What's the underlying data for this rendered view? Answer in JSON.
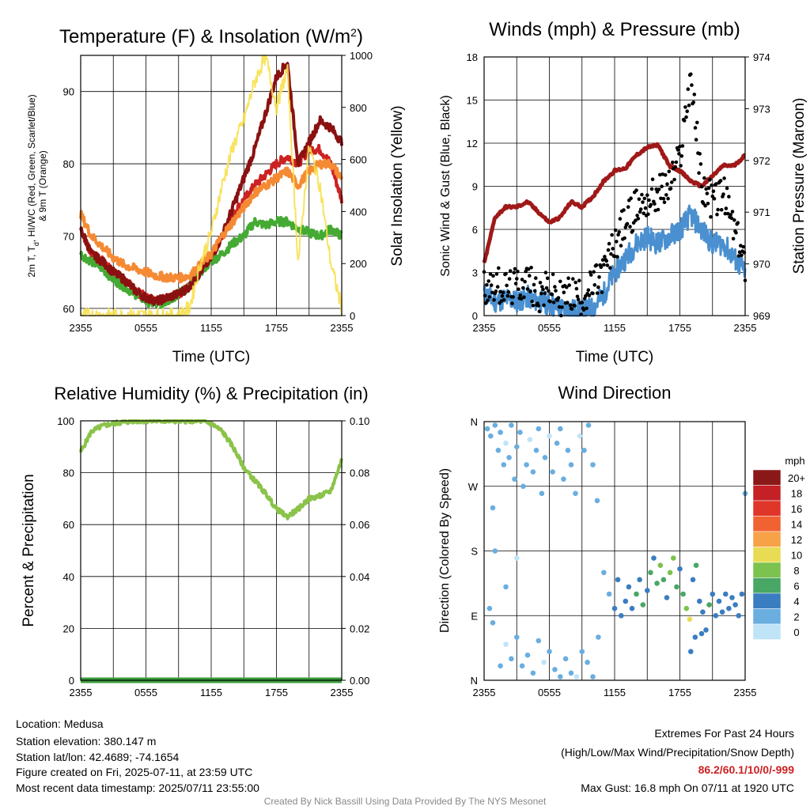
{
  "colors": {
    "temp": "#cc2222",
    "dewpoint": "#44aa33",
    "heat_index": "#8b1111",
    "temp9m": "#f58a34",
    "solar": "#f7e04f",
    "wind": "#4a90d0",
    "gust": "#000000",
    "pressure": "#a01818",
    "rh": "#8bc34a",
    "precip": "#3a9a3a",
    "extremes_values": "#cc2222"
  },
  "time_ticks": [
    "2355",
    "0555",
    "1155",
    "1755",
    "2355"
  ],
  "chart_data": [
    {
      "id": "temperature",
      "type": "line",
      "title": "Temperature (F) & Insolation (W/m",
      "title_sup": "2",
      "title_end": ")",
      "xlabel": "Time (UTC)",
      "ylabel_lines": [
        "2m T, T",
        "d",
        ", HI/WC (Red, Green, Scarlet/Blue)",
        "& 9m T (Orange)"
      ],
      "ylabel2": "Solar Insolation (Yellow)",
      "ylim": [
        59,
        95
      ],
      "yticks": [
        60,
        70,
        80,
        90
      ],
      "ylim2": [
        0,
        1000
      ],
      "yticks2": [
        0,
        200,
        400,
        600,
        800,
        1000
      ],
      "xlim": [
        0,
        24
      ],
      "series": [
        {
          "name": "2m T",
          "color": "#cc2222",
          "x": [
            0,
            1,
            2,
            3,
            4,
            5,
            6,
            7,
            8,
            9,
            10,
            11,
            12,
            13,
            14,
            15,
            16,
            17,
            18,
            19,
            20,
            21,
            22,
            23,
            24
          ],
          "y": [
            71,
            67.5,
            66.5,
            65,
            64,
            62.5,
            61.5,
            61,
            61.5,
            62,
            63,
            65,
            67,
            70,
            73,
            75,
            77,
            78.5,
            80,
            81,
            80,
            82,
            82,
            80,
            75
          ]
        },
        {
          "name": "Td",
          "color": "#44aa33",
          "x": [
            0,
            1,
            2,
            3,
            4,
            5,
            6,
            7,
            8,
            9,
            10,
            11,
            12,
            13,
            14,
            15,
            16,
            17,
            18,
            19,
            20,
            21,
            22,
            23,
            24
          ],
          "y": [
            67.5,
            66.5,
            65.5,
            64,
            63,
            62,
            61,
            60.5,
            61,
            62,
            63,
            65,
            66.5,
            67.5,
            69,
            70,
            72,
            71.5,
            72,
            72,
            71,
            70.5,
            70,
            71,
            70
          ]
        },
        {
          "name": "HI/WC",
          "color": "#8b1111",
          "x": [
            0,
            1,
            2,
            3,
            4,
            5,
            6,
            7,
            8,
            9,
            10,
            11,
            12,
            13,
            14,
            15,
            16,
            17,
            18,
            19,
            20,
            21,
            22,
            23,
            24
          ],
          "y": [
            71,
            67.5,
            66.5,
            65,
            64,
            62.5,
            61.5,
            61,
            61.5,
            62,
            63,
            65,
            67,
            70,
            74,
            78,
            82,
            87,
            92,
            94,
            80,
            83,
            86,
            85,
            83
          ]
        },
        {
          "name": "9m T",
          "color": "#f58a34",
          "x": [
            0,
            1,
            2,
            3,
            4,
            5,
            6,
            7,
            8,
            9,
            10,
            11,
            12,
            13,
            14,
            15,
            16,
            17,
            18,
            19,
            20,
            21,
            22,
            23,
            24
          ],
          "y": [
            73,
            70,
            68.5,
            67,
            66,
            65.5,
            65,
            64.5,
            64.3,
            64.2,
            64.5,
            66,
            67.5,
            70,
            72,
            74,
            76,
            77,
            78,
            79,
            77,
            79,
            80,
            80,
            78
          ]
        },
        {
          "name": "Solar",
          "color": "#f7e04f",
          "axis": "right",
          "x": [
            0,
            1,
            2,
            3,
            4,
            5,
            6,
            7,
            8,
            9,
            10,
            11,
            12,
            13,
            14,
            15,
            16,
            17,
            18,
            19,
            20,
            21,
            22,
            23,
            24
          ],
          "y": [
            0,
            0,
            0,
            0,
            0,
            0,
            0,
            0,
            0,
            0,
            30,
            200,
            320,
            500,
            650,
            750,
            900,
            1000,
            800,
            950,
            200,
            650,
            500,
            200,
            30
          ]
        }
      ]
    },
    {
      "id": "winds",
      "type": "line",
      "title": "Winds (mph) & Pressure (mb)",
      "xlabel": "Time (UTC)",
      "ylabel": "Sonic Wind & Gust (Blue, Black)",
      "ylabel2": "Station Pressure (Maroon)",
      "ylim": [
        0,
        18
      ],
      "yticks": [
        0,
        3,
        6,
        9,
        12,
        15,
        18
      ],
      "ylim2": [
        969,
        974
      ],
      "yticks2": [
        969,
        970,
        971,
        972,
        973,
        974
      ],
      "xlim": [
        0,
        24
      ],
      "series": [
        {
          "name": "Sonic Wind",
          "color": "#4a90d0",
          "x": [
            0,
            1,
            2,
            3,
            4,
            5,
            6,
            7,
            8,
            9,
            10,
            11,
            12,
            13,
            14,
            15,
            16,
            17,
            18,
            19,
            20,
            21,
            22,
            23,
            24
          ],
          "y": [
            1.5,
            1,
            1.2,
            1,
            1.3,
            1,
            0.8,
            0.5,
            0.4,
            0.3,
            0.5,
            1.5,
            3,
            4,
            5,
            5.5,
            5,
            5.5,
            6,
            7,
            6,
            5,
            5,
            4,
            3
          ]
        },
        {
          "name": "Gust",
          "color": "#000000",
          "x": [
            0,
            1,
            2,
            3,
            4,
            5,
            6,
            7,
            8,
            9,
            10,
            11,
            12,
            13,
            14,
            15,
            16,
            17,
            18,
            19,
            20,
            21,
            22,
            23,
            24
          ],
          "y": [
            2,
            2.3,
            1.8,
            2,
            2.5,
            1.5,
            1.8,
            1.2,
            1.5,
            1.3,
            2,
            3,
            5,
            6.5,
            7.5,
            8,
            8.5,
            9,
            11,
            16.8,
            9,
            8,
            8.5,
            6,
            3.5
          ]
        },
        {
          "name": "Pressure",
          "color": "#a01818",
          "axis": "right",
          "x": [
            0,
            1,
            2,
            3,
            4,
            5,
            6,
            7,
            8,
            9,
            10,
            11,
            12,
            13,
            14,
            15,
            16,
            17,
            18,
            19,
            20,
            21,
            22,
            23,
            24
          ],
          "y": [
            970,
            970.9,
            971.1,
            971.1,
            971.2,
            971.0,
            970.8,
            970.9,
            971.2,
            971.1,
            971.3,
            971.6,
            971.8,
            971.85,
            972.1,
            972.25,
            972.3,
            971.9,
            971.8,
            971.6,
            971.5,
            971.7,
            971.9,
            971.9,
            972.1
          ]
        }
      ]
    },
    {
      "id": "humidity",
      "type": "line",
      "title": "Relative Humidity (%) & Precipitation (in)",
      "ylabel": "Percent & Precipitation",
      "ylim": [
        0,
        100
      ],
      "yticks": [
        0,
        20,
        40,
        60,
        80,
        100
      ],
      "ylim2": [
        0,
        0.1
      ],
      "yticks2": [
        "0.00",
        "0.02",
        "0.04",
        "0.06",
        "0.08",
        "0.10"
      ],
      "xlim": [
        0,
        24
      ],
      "series": [
        {
          "name": "RH",
          "color": "#8bc34a",
          "x": [
            0,
            1,
            2,
            3,
            4,
            5,
            6,
            7,
            8,
            9,
            10,
            11,
            12,
            13,
            14,
            15,
            16,
            17,
            18,
            19,
            20,
            21,
            22,
            23,
            24
          ],
          "y": [
            88,
            96,
            98,
            99,
            99.5,
            100,
            100,
            100,
            100,
            100,
            100,
            100,
            99,
            96,
            90,
            82,
            77,
            72,
            66,
            63,
            66,
            70,
            71,
            73,
            85
          ]
        },
        {
          "name": "Precipitation",
          "color": "#3a9a3a",
          "axis": "right",
          "x": [
            0,
            24
          ],
          "y": [
            0,
            0
          ]
        }
      ]
    },
    {
      "id": "wind_direction",
      "type": "scatter",
      "title": "Wind Direction",
      "ylabel": "Direction (Colored By Speed)",
      "yticks": [
        0,
        90,
        180,
        270,
        360
      ],
      "ytick_labels": [
        "N",
        "E",
        "S",
        "W",
        "N"
      ],
      "ylim": [
        0,
        360
      ],
      "xlim": [
        0,
        24
      ],
      "colorbar_title": "mph",
      "colorbar_labels": [
        "20+",
        "18",
        "16",
        "14",
        "12",
        "10",
        "8",
        "6",
        "4",
        "2",
        "0"
      ],
      "colorbar_colors": [
        "#8b1818",
        "#c42026",
        "#e0362a",
        "#f06232",
        "#f7a247",
        "#e9dc55",
        "#7cc24e",
        "#48a764",
        "#3a7dc0",
        "#6aaee0",
        "#bfe4f7"
      ],
      "points": [
        [
          0.3,
          350,
          1
        ],
        [
          0.6,
          340,
          2
        ],
        [
          1.0,
          355,
          1
        ],
        [
          1.3,
          320,
          1
        ],
        [
          1.5,
          345,
          2
        ],
        [
          1.8,
          300,
          1
        ],
        [
          2.0,
          330,
          0
        ],
        [
          2.3,
          310,
          2
        ],
        [
          2.5,
          355,
          1
        ],
        [
          2.8,
          280,
          2
        ],
        [
          3.0,
          325,
          1
        ],
        [
          3.3,
          345,
          1
        ],
        [
          3.6,
          270,
          2
        ],
        [
          3.9,
          300,
          1
        ],
        [
          4.2,
          335,
          0
        ],
        [
          4.5,
          290,
          1
        ],
        [
          4.8,
          320,
          2
        ],
        [
          5.0,
          350,
          1
        ],
        [
          5.3,
          260,
          1
        ],
        [
          5.6,
          310,
          1
        ],
        [
          6.0,
          340,
          0
        ],
        [
          6.3,
          290,
          1
        ],
        [
          6.7,
          330,
          1
        ],
        [
          7.0,
          350,
          2
        ],
        [
          7.3,
          280,
          1
        ],
        [
          7.7,
          320,
          1
        ],
        [
          8.0,
          300,
          1
        ],
        [
          8.4,
          260,
          1
        ],
        [
          8.8,
          340,
          0
        ],
        [
          9.2,
          320,
          1
        ],
        [
          9.6,
          355,
          1
        ],
        [
          10.0,
          300,
          1
        ],
        [
          10.4,
          250,
          1
        ],
        [
          0.5,
          100,
          1
        ],
        [
          0.8,
          80,
          1
        ],
        [
          1.5,
          20,
          1
        ],
        [
          2.0,
          50,
          0
        ],
        [
          2.5,
          30,
          1
        ],
        [
          3.0,
          60,
          1
        ],
        [
          3.5,
          20,
          1
        ],
        [
          4.0,
          35,
          2
        ],
        [
          4.5,
          10,
          1
        ],
        [
          5.0,
          55,
          1
        ],
        [
          5.5,
          25,
          0
        ],
        [
          6.0,
          40,
          1
        ],
        [
          6.5,
          15,
          1
        ],
        [
          7.0,
          5,
          1
        ],
        [
          7.5,
          30,
          1
        ],
        [
          8.0,
          10,
          1
        ],
        [
          8.5,
          5,
          0
        ],
        [
          9.0,
          40,
          1
        ],
        [
          9.5,
          25,
          1
        ],
        [
          10.0,
          5,
          1
        ],
        [
          10.5,
          60,
          1
        ],
        [
          1.0,
          180,
          1
        ],
        [
          2.0,
          130,
          1
        ],
        [
          3.0,
          170,
          0
        ],
        [
          0.8,
          240,
          1
        ],
        [
          11.0,
          150,
          2
        ],
        [
          11.5,
          120,
          2
        ],
        [
          12.0,
          100,
          3
        ],
        [
          12.3,
          140,
          3
        ],
        [
          12.6,
          90,
          4
        ],
        [
          13.0,
          110,
          3
        ],
        [
          13.3,
          130,
          4
        ],
        [
          13.6,
          100,
          4
        ],
        [
          14.0,
          120,
          5
        ],
        [
          14.3,
          140,
          4
        ],
        [
          14.6,
          105,
          6
        ],
        [
          15.0,
          125,
          4
        ],
        [
          15.3,
          150,
          5
        ],
        [
          15.6,
          170,
          4
        ],
        [
          15.9,
          135,
          6
        ],
        [
          16.2,
          160,
          7
        ],
        [
          16.5,
          140,
          5
        ],
        [
          16.8,
          115,
          4
        ],
        [
          17.1,
          150,
          7
        ],
        [
          17.4,
          170,
          8
        ],
        [
          17.7,
          130,
          5
        ],
        [
          18.0,
          155,
          4
        ],
        [
          18.3,
          120,
          6
        ],
        [
          18.6,
          100,
          7
        ],
        [
          18.9,
          85,
          10
        ],
        [
          19.2,
          140,
          4
        ],
        [
          19.5,
          160,
          6
        ],
        [
          19.8,
          110,
          3
        ],
        [
          20.1,
          95,
          4
        ],
        [
          20.4,
          70,
          4
        ],
        [
          20.7,
          105,
          6
        ],
        [
          21.0,
          120,
          4
        ],
        [
          21.3,
          90,
          3
        ],
        [
          21.6,
          110,
          3
        ],
        [
          21.9,
          95,
          4
        ],
        [
          22.2,
          120,
          3
        ],
        [
          22.5,
          100,
          4
        ],
        [
          22.8,
          115,
          3
        ],
        [
          23.1,
          105,
          4
        ],
        [
          23.4,
          90,
          3
        ],
        [
          23.7,
          120,
          3
        ],
        [
          24.0,
          260,
          2
        ],
        [
          19.0,
          40,
          3
        ],
        [
          19.4,
          60,
          4
        ],
        [
          20.0,
          65,
          3
        ]
      ]
    }
  ],
  "info": {
    "location": "Location: Medusa",
    "elevation": "Station elevation: 380.147 m",
    "latlon": "Station lat/lon: 42.4689; -74.1654",
    "created": "Figure created on Fri, 2025-07-11, at 23:59 UTC",
    "recent": "Most recent data timestamp: 2025/07/11 23:55:00"
  },
  "extremes": {
    "title": "Extremes For Past 24 Hours",
    "legend": "(High/Low/Max Wind/Precipitation/Snow Depth)",
    "values": "86.2/60.1/10/0/-999",
    "max_gust": "Max Gust: 16.8 mph On 07/11 at 1920 UTC"
  },
  "credit": "Created By Nick Bassill Using Data Provided By The NYS Mesonet"
}
